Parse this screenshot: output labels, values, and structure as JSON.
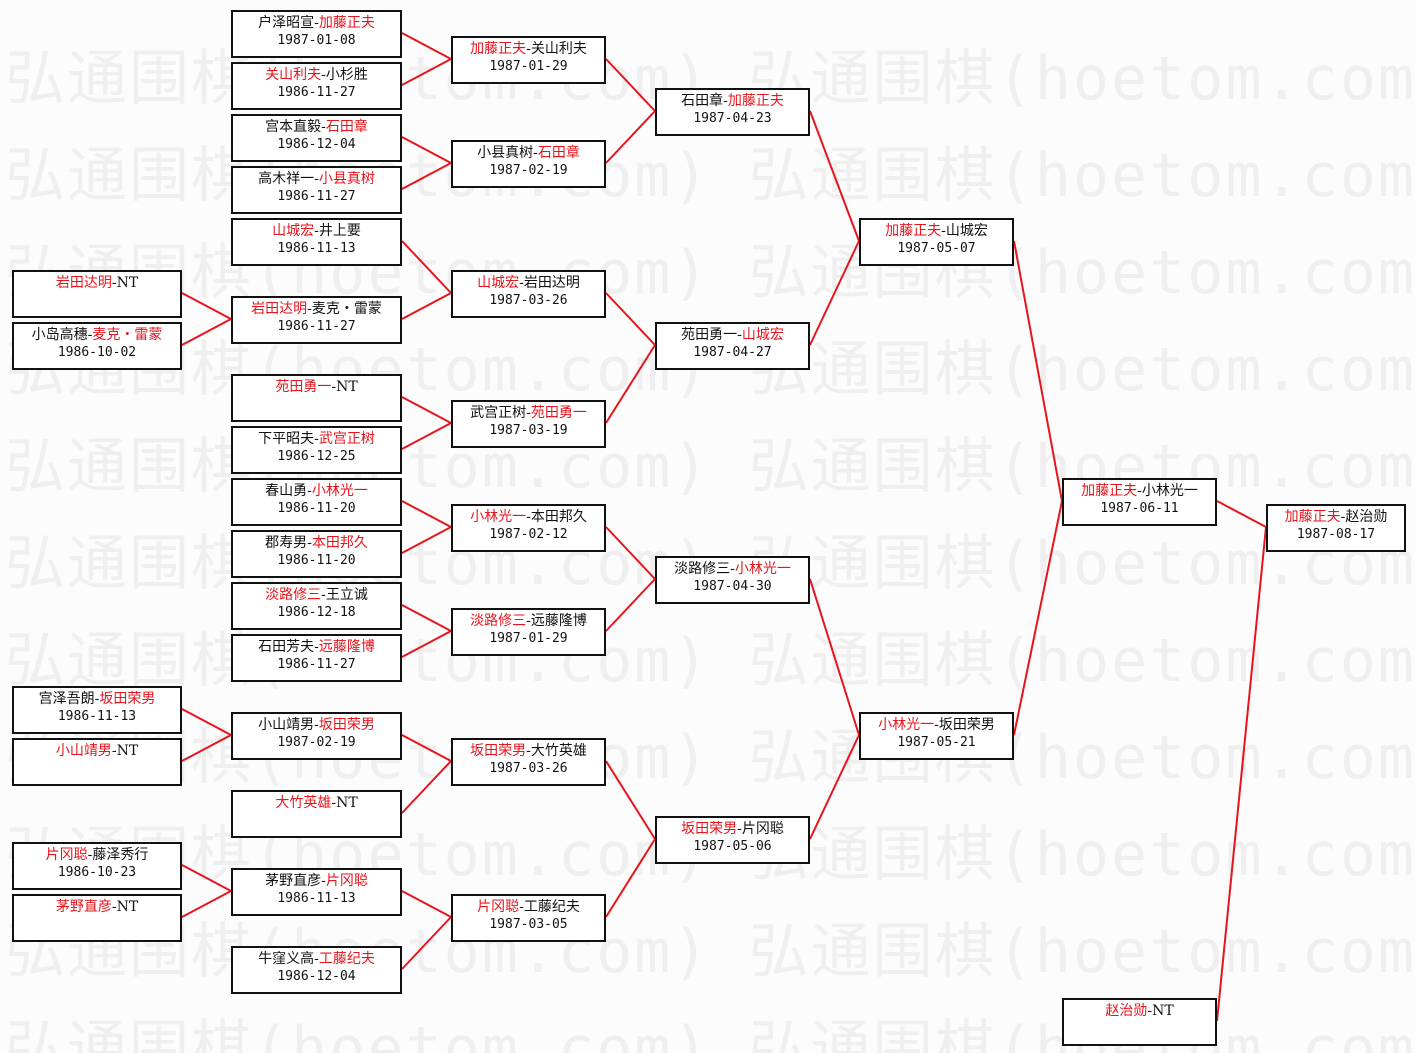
{
  "watermark": "弘通围棋(hoetom.com)",
  "colors": {
    "winner": "#e8141c",
    "line": "#e8141c",
    "border": "#111111"
  },
  "separator": "-",
  "rounds": [
    {
      "matches": [
        {
          "p1": "岩田达明",
          "p2": "NT",
          "winner": 1,
          "date": ""
        },
        {
          "p1": "小岛高穗",
          "p2": "麦克・雷蒙",
          "winner": 2,
          "date": "1986-10-02"
        },
        {
          "p1": "宫泽吾朗",
          "p2": "坂田荣男",
          "winner": 2,
          "date": "1986-11-13"
        },
        {
          "p1": "小山靖男",
          "p2": "NT",
          "winner": 1,
          "date": ""
        },
        {
          "p1": "片冈聪",
          "p2": "藤泽秀行",
          "winner": 1,
          "date": "1986-10-23"
        },
        {
          "p1": "茅野直彦",
          "p2": "NT",
          "winner": 1,
          "date": ""
        }
      ]
    },
    {
      "matches": [
        {
          "p1": "户泽昭宣",
          "p2": "加藤正夫",
          "winner": 2,
          "date": "1987-01-08"
        },
        {
          "p1": "关山利夫",
          "p2": "小杉胜",
          "winner": 1,
          "date": "1986-11-27"
        },
        {
          "p1": "宫本直毅",
          "p2": "石田章",
          "winner": 2,
          "date": "1986-12-04"
        },
        {
          "p1": "高木祥一",
          "p2": "小县真树",
          "winner": 2,
          "date": "1986-11-27"
        },
        {
          "p1": "山城宏",
          "p2": "井上要",
          "winner": 1,
          "date": "1986-11-13"
        },
        {
          "p1": "岩田达明",
          "p2": "麦克・雷蒙",
          "winner": 1,
          "date": "1986-11-27"
        },
        {
          "p1": "苑田勇一",
          "p2": "NT",
          "winner": 1,
          "date": ""
        },
        {
          "p1": "下平昭夫",
          "p2": "武宫正树",
          "winner": 2,
          "date": "1986-12-25"
        },
        {
          "p1": "春山勇",
          "p2": "小林光一",
          "winner": 2,
          "date": "1986-11-20"
        },
        {
          "p1": "郡寿男",
          "p2": "本田邦久",
          "winner": 2,
          "date": "1986-11-20"
        },
        {
          "p1": "淡路修三",
          "p2": "王立诚",
          "winner": 1,
          "date": "1986-12-18"
        },
        {
          "p1": "石田芳夫",
          "p2": "远藤隆博",
          "winner": 2,
          "date": "1986-11-27"
        },
        {
          "p1": "小山靖男",
          "p2": "坂田荣男",
          "winner": 2,
          "date": "1987-02-19"
        },
        {
          "p1": "大竹英雄",
          "p2": "NT",
          "winner": 1,
          "date": ""
        },
        {
          "p1": "茅野直彦",
          "p2": "片冈聪",
          "winner": 2,
          "date": "1986-11-13"
        },
        {
          "p1": "牛窪义高",
          "p2": "工藤纪夫",
          "winner": 2,
          "date": "1986-12-04"
        }
      ]
    },
    {
      "matches": [
        {
          "p1": "加藤正夫",
          "p2": "关山利夫",
          "winner": 1,
          "date": "1987-01-29"
        },
        {
          "p1": "小县真树",
          "p2": "石田章",
          "winner": 2,
          "date": "1987-02-19"
        },
        {
          "p1": "山城宏",
          "p2": "岩田达明",
          "winner": 1,
          "date": "1987-03-26"
        },
        {
          "p1": "武宫正树",
          "p2": "苑田勇一",
          "winner": 2,
          "date": "1987-03-19"
        },
        {
          "p1": "小林光一",
          "p2": "本田邦久",
          "winner": 1,
          "date": "1987-02-12"
        },
        {
          "p1": "淡路修三",
          "p2": "远藤隆博",
          "winner": 1,
          "date": "1987-01-29"
        },
        {
          "p1": "坂田荣男",
          "p2": "大竹英雄",
          "winner": 1,
          "date": "1987-03-26"
        },
        {
          "p1": "片冈聪",
          "p2": "工藤纪夫",
          "winner": 1,
          "date": "1987-03-05"
        }
      ]
    },
    {
      "matches": [
        {
          "p1": "石田章",
          "p2": "加藤正夫",
          "winner": 2,
          "date": "1987-04-23"
        },
        {
          "p1": "苑田勇一",
          "p2": "山城宏",
          "winner": 2,
          "date": "1987-04-27"
        },
        {
          "p1": "淡路修三",
          "p2": "小林光一",
          "winner": 2,
          "date": "1987-04-30"
        },
        {
          "p1": "坂田荣男",
          "p2": "片冈聪",
          "winner": 1,
          "date": "1987-05-06"
        }
      ]
    },
    {
      "matches": [
        {
          "p1": "加藤正夫",
          "p2": "山城宏",
          "winner": 1,
          "date": "1987-05-07"
        },
        {
          "p1": "小林光一",
          "p2": "坂田荣男",
          "winner": 1,
          "date": "1987-05-21"
        }
      ]
    },
    {
      "matches": [
        {
          "p1": "加藤正夫",
          "p2": "小林光一",
          "winner": 1,
          "date": "1987-06-11"
        },
        {
          "p1": "赵治勋",
          "p2": "NT",
          "winner": 1,
          "date": ""
        }
      ]
    },
    {
      "matches": [
        {
          "p1": "加藤正夫",
          "p2": "赵治勋",
          "winner": 1,
          "date": "1987-08-17"
        }
      ]
    }
  ]
}
